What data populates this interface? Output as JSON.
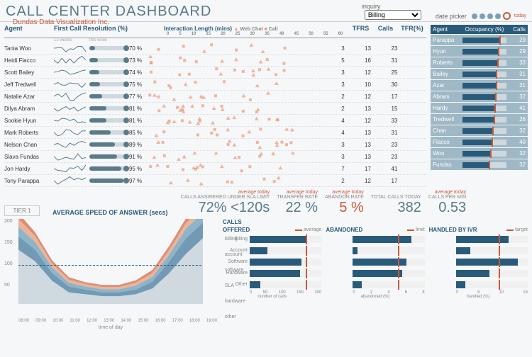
{
  "header": {
    "title": "CALL CENTER DASHBOARD",
    "subtitle": "Dundas Data Visualization Inc.",
    "inquiry_label": "inquiry",
    "inquiry_value": "Billing",
    "datepicker_label": "date picker",
    "today": "today"
  },
  "columns": {
    "agent": "Agent",
    "fcr": "First Call Resolution (%)",
    "int": "Interaction Length (mins)",
    "wc": "Web Chat",
    "call": "Call",
    "tfrs": "TFRS",
    "calls": "Calls",
    "tfrp": "TFR(%)"
  },
  "fcr_legend": {
    "l1": "12 weeks",
    "l2": "this week"
  },
  "int_axis": [
    0,
    5,
    10,
    15,
    20,
    25,
    30,
    35,
    40,
    45,
    50,
    55,
    60
  ],
  "agents": [
    {
      "name": "Tania Woo",
      "pct": 70,
      "t": 3,
      "c": 13,
      "f": 23
    },
    {
      "name": "Heidi Flacco",
      "pct": 73,
      "t": 5,
      "c": 16,
      "f": 31
    },
    {
      "name": "Scott Bailey",
      "pct": 74,
      "t": 3,
      "c": 12,
      "f": 25
    },
    {
      "name": "Jeff Tredwell",
      "pct": 75,
      "t": 3,
      "c": 10,
      "f": 30
    },
    {
      "name": "Natalie Azar",
      "pct": 77,
      "t": 2,
      "c": 12,
      "f": 17
    },
    {
      "name": "Dilya Abram",
      "pct": 81,
      "t": 2,
      "c": 13,
      "f": 15
    },
    {
      "name": "Sookie Hyun",
      "pct": 81,
      "t": 4,
      "c": 12,
      "f": 33
    },
    {
      "name": "Mark Roberts",
      "pct": 85,
      "t": 4,
      "c": 13,
      "f": 31
    },
    {
      "name": "Nelson Chan",
      "pct": 89,
      "t": 3,
      "c": 13,
      "f": 23
    },
    {
      "name": "Slava Fundas",
      "pct": 91,
      "t": 3,
      "c": 13,
      "f": 23
    },
    {
      "name": "Jon Hardy",
      "pct": 95,
      "t": 7,
      "c": 17,
      "f": 41
    },
    {
      "name": "Tony Parappa",
      "pct": 97,
      "t": 2,
      "c": 12,
      "f": 17
    }
  ],
  "rpanel": {
    "hdr_agent": "Agent",
    "hdr_occ": "Occupancy (%)",
    "hdr_calls": "Calls",
    "rows": [
      {
        "n": "Parappa",
        "o": 85,
        "c": 29
      },
      {
        "n": "Hyun",
        "o": 82,
        "c": 29
      },
      {
        "n": "Roberts",
        "o": 80,
        "c": 33
      },
      {
        "n": "Bailey",
        "o": 78,
        "c": 31
      },
      {
        "n": "Azar",
        "o": 77,
        "c": 31
      },
      {
        "n": "Abram",
        "o": 76,
        "c": 32
      },
      {
        "n": "Hardy",
        "o": 74,
        "c": 41
      },
      {
        "n": "Tredwell",
        "o": 72,
        "c": 26
      },
      {
        "n": "Chan",
        "o": 70,
        "c": 32
      },
      {
        "n": "Flacco",
        "o": 68,
        "c": 40
      },
      {
        "n": "Woo",
        "o": 65,
        "c": 32
      },
      {
        "n": "Fundas",
        "o": 62,
        "c": 32
      }
    ]
  },
  "kpi": {
    "avg_today": "average today",
    "sla_l": "CALLS ANSWERED UNDER SLA LIMIT",
    "sla_v": "72% <120s",
    "tr_l": "TRANSFER RATE",
    "tr_v": "22 %",
    "ar_l": "ABANDON RATE",
    "ar_v": "5 %",
    "tc_l": "TOTAL CALLS TODAY",
    "tc_v": "382",
    "cpm_l": "CALLS PER MIN",
    "cpm_v": "0.53",
    "tier": "TIER 1",
    "asa": "AVERAGE SPEED OF ANSWER (secs)"
  },
  "area": {
    "ylab": [
      50,
      100,
      150,
      200
    ],
    "xlab": [
      "08:00",
      "09:00",
      "10:00",
      "11:00",
      "12:00",
      "13:00",
      "14:00",
      "15:00",
      "16:00",
      "17:00",
      "18:00",
      "19:00"
    ],
    "legend": [
      "billing",
      "account",
      "software",
      "SLA",
      "hardware",
      "other"
    ],
    "xaxis": "time of day",
    "colors": {
      "billing": "#d97a5a",
      "account": "#e8a88a",
      "software": "#7aa8c0",
      "hardware": "#5a8aa8",
      "other": "#c8d4da",
      "sla": "#2a5a7a"
    }
  },
  "calls": {
    "hdr": "CALLS",
    "cats": [
      "Billing",
      "Account",
      "Software",
      "Hardware",
      "Other"
    ],
    "offered": {
      "ttl": "OFFERED",
      "leg": "average",
      "vals": [
        155,
        50,
        145,
        140,
        30
      ],
      "line": 155,
      "axis": [
        0,
        50,
        100,
        150,
        200
      ],
      "xl": "number of calls"
    },
    "aband": {
      "ttl": "ABANDONED",
      "leg": "limit",
      "vals": [
        6.5,
        0.5,
        6,
        5.5,
        1
      ],
      "line": 5,
      "axis": [
        0,
        2,
        4,
        6,
        8
      ],
      "xl": "abandoned (%)"
    },
    "ivr": {
      "ttl": "HANDLED BY IVR",
      "leg": "target",
      "vals": [
        11,
        3,
        13,
        7,
        2
      ],
      "line": 9,
      "axis": [
        0,
        5,
        10,
        15
      ],
      "xl": "handled (%)"
    }
  }
}
